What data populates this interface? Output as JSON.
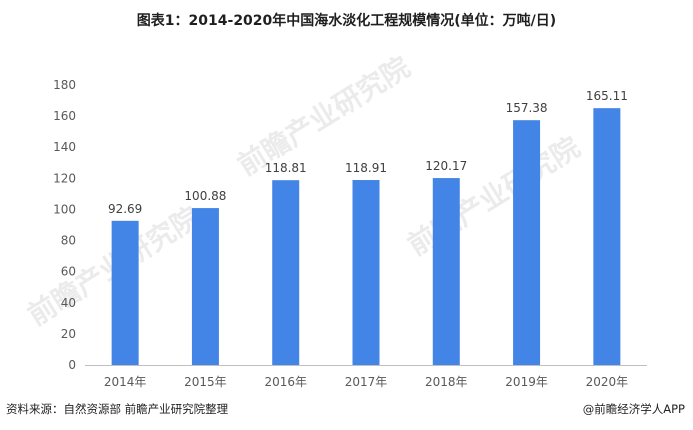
{
  "chart_data": {
    "type": "bar",
    "title": "图表1：2014-2020年中国海水淡化工程规模情况(单位：万吨/日)",
    "xlabel": "",
    "ylabel": "",
    "categories": [
      "2014年",
      "2015年",
      "2016年",
      "2017年",
      "2018年",
      "2019年",
      "2020年"
    ],
    "values": [
      92.69,
      100.88,
      118.81,
      118.91,
      120.17,
      157.38,
      165.11
    ],
    "value_labels": [
      "92.69",
      "100.88",
      "118.81",
      "118.91",
      "120.17",
      "157.38",
      "165.11"
    ],
    "ylim": [
      0,
      180
    ],
    "yticks": [
      0,
      20,
      40,
      60,
      80,
      100,
      120,
      140,
      160,
      180
    ],
    "grid": false,
    "legend": "none",
    "bar_color": "#4285e6"
  },
  "footer": {
    "source": "资料来源：自然资源部 前瞻产业研究院整理",
    "credit": "@前瞻经济学人APP"
  },
  "watermark": {
    "text": "前瞻产业研究院"
  },
  "colors": {
    "bar": "#4285e6",
    "axis": "#bfbfbf",
    "tick_text": "#595959",
    "label_text": "#404040"
  }
}
